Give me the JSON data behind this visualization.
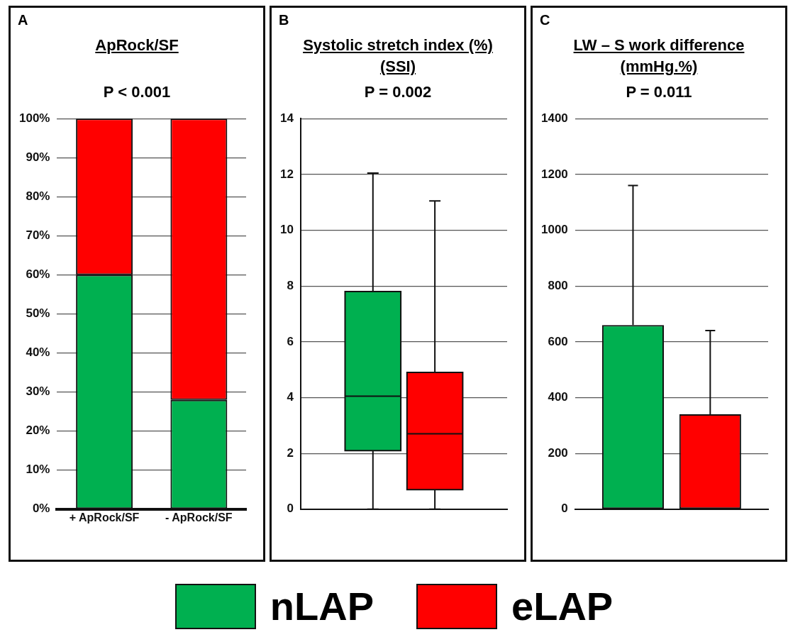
{
  "chart_data": [
    {
      "type": "bar",
      "title": "ApRock/SF",
      "annotations": [
        "A",
        "P < 0.001"
      ],
      "categories": [
        "+ ApRock/SF",
        "- ApRock/SF"
      ],
      "stacked": true,
      "series": [
        {
          "name": "nLAP",
          "color": "#00b050",
          "values": [
            60,
            28
          ]
        },
        {
          "name": "eLAP",
          "color": "#ff0000",
          "values": [
            40,
            72
          ]
        }
      ],
      "ylim": [
        0,
        100
      ],
      "yticks": [
        {
          "value": 0,
          "label": "0%"
        },
        {
          "value": 10,
          "label": "10%"
        },
        {
          "value": 20,
          "label": "20%"
        },
        {
          "value": 30,
          "label": "30%"
        },
        {
          "value": 40,
          "label": "40%"
        },
        {
          "value": 50,
          "label": "50%"
        },
        {
          "value": 60,
          "label": "60%"
        },
        {
          "value": 70,
          "label": "70%"
        },
        {
          "value": 80,
          "label": "80%"
        },
        {
          "value": 90,
          "label": "90%"
        },
        {
          "value": 100,
          "label": "100%"
        }
      ],
      "grid": "y",
      "legend": "bottom"
    },
    {
      "type": "box",
      "title": "Systolic stretch index (%) (SSI)",
      "annotations": [
        "B",
        "P = 0.002"
      ],
      "categories": [
        null
      ],
      "series": [
        {
          "name": "nLAP",
          "color": "#00b050",
          "boxes": [
            {
              "low": 0,
              "q1": 2.1,
              "median": 4.05,
              "q3": 7.8,
              "high": 12.05
            }
          ]
        },
        {
          "name": "eLAP",
          "color": "#ff0000",
          "boxes": [
            {
              "low": 0,
              "q1": 0.7,
              "median": 2.7,
              "q3": 4.9,
              "high": 11.05
            }
          ]
        }
      ],
      "ylim": [
        0,
        14
      ],
      "yticks": [
        0,
        2,
        4,
        6,
        8,
        10,
        12,
        14
      ],
      "grid": "y",
      "legend": "bottom"
    },
    {
      "type": "bar",
      "title": "LW – S work difference (mmHg.%)",
      "annotations": [
        "C",
        "P = 0.011"
      ],
      "categories": [
        null
      ],
      "series": [
        {
          "name": "nLAP",
          "color": "#00b050",
          "values": [
            660
          ],
          "errors": [
            [
              660,
              1160
            ]
          ]
        },
        {
          "name": "eLAP",
          "color": "#ff0000",
          "values": [
            340
          ],
          "errors": [
            [
              340,
              640
            ]
          ]
        }
      ],
      "ylim": [
        0,
        1400
      ],
      "yticks": [
        0,
        200,
        400,
        600,
        800,
        1000,
        1200,
        1400
      ],
      "grid": "y",
      "legend": "bottom"
    }
  ]
}
